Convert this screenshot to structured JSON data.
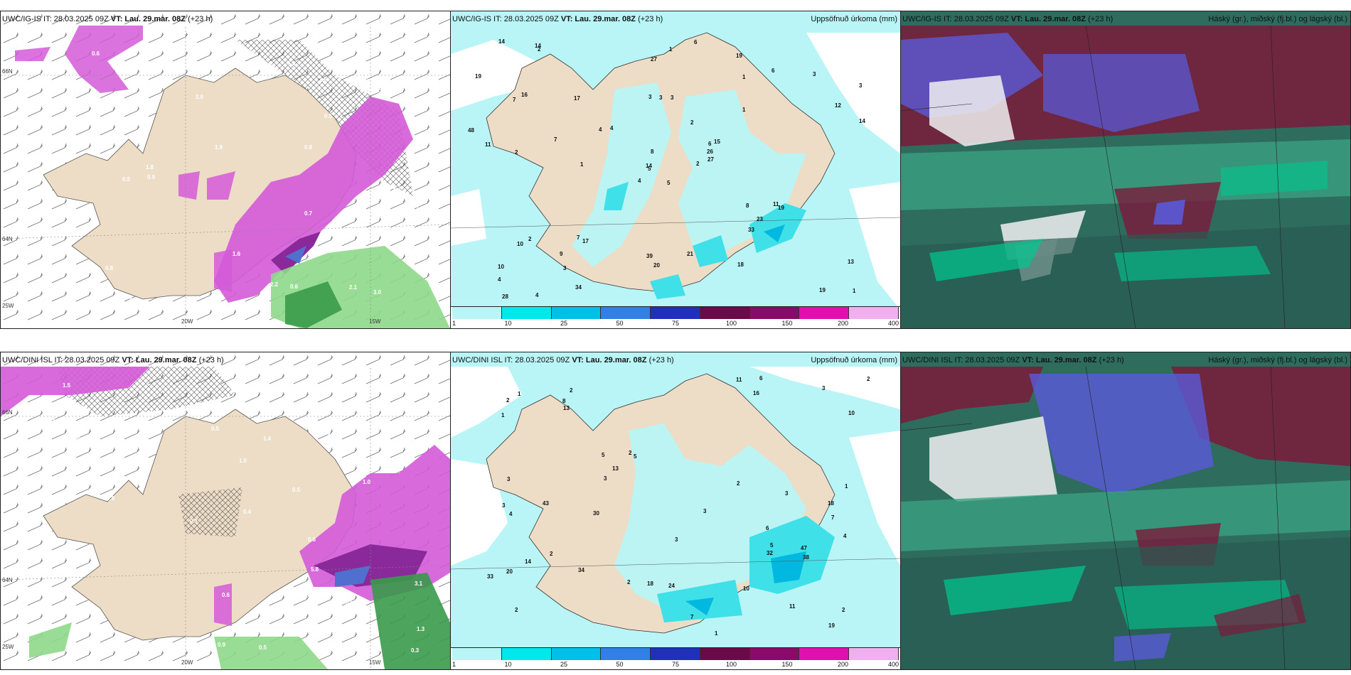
{
  "panels": [
    {
      "id": "p1",
      "header_left": "UWC/IG-IS IT: 28.03.2025 09Z",
      "header_vt": "VT: Lau. 29.mar. 08Z",
      "header_tail": "(+23 h)",
      "header_right": "",
      "lon_labels": [
        "20W",
        "15W"
      ],
      "lat_labels": [
        "66N",
        "64N",
        "25W"
      ]
    },
    {
      "id": "p2",
      "header_left": "UWC/IG-IS IT: 28.03.2025 09Z",
      "header_vt": "VT: Lau. 29.mar. 08Z",
      "header_tail": "(+23 h)",
      "header_right": "Uppsöfnuð úrkoma (mm)",
      "values": [
        "5",
        "7",
        "5",
        "10",
        "6",
        "17",
        "19",
        "3",
        "1",
        "2",
        "2",
        "1",
        "2",
        "3",
        "4",
        "1",
        "4",
        "3",
        "2",
        "2",
        "4",
        "4",
        "3",
        "3",
        "15",
        "19",
        "16",
        "27",
        "11",
        "8",
        "14",
        "14",
        "39",
        "8",
        "17",
        "6",
        "7",
        "19",
        "13",
        "11",
        "6",
        "4",
        "7",
        "33",
        "34",
        "48",
        "26",
        "28",
        "20",
        "27",
        "10",
        "12",
        "19",
        "23",
        "18",
        "9",
        "14",
        "14",
        "21",
        "3",
        "1",
        "1"
      ],
      "legend_ticks": [
        "1",
        "10",
        "25",
        "50",
        "75",
        "100",
        "150",
        "200",
        "400"
      ]
    },
    {
      "id": "p3",
      "header_left": "UWC/IG-IS IT: 28.03.2025 09Z",
      "header_vt": "VT: Lau. 29.mar. 08Z",
      "header_tail": "(+23 h)",
      "header_right": "Háský (gr.), miðský (fj.bl.) og lágský (bl.)"
    },
    {
      "id": "p4",
      "header_left": "UWC/DINI ISL IT: 28.03.2025 09Z",
      "header_vt": "VT: Lau. 29.mar. 08Z",
      "header_tail": "(+23 h)",
      "header_right": "",
      "lon_labels": [
        "20W",
        "15W"
      ],
      "lat_labels": [
        "66N",
        "64N",
        "25W"
      ]
    },
    {
      "id": "p5",
      "header_left": "UWC/DINI ISL IT: 28.03.2025 09Z",
      "header_vt": "VT: Lau. 29.mar. 08Z",
      "header_tail": "(+23 h)",
      "header_right": "Uppsöfnuð úrkoma (mm)",
      "values": [
        "6",
        "7",
        "2",
        "2",
        "5",
        "11",
        "20",
        "16",
        "5",
        "1",
        "1",
        "3",
        "2",
        "2",
        "2",
        "1",
        "3",
        "3",
        "2",
        "2",
        "2",
        "3",
        "3",
        "4",
        "11",
        "8",
        "5",
        "4",
        "13",
        "3",
        "7",
        "10",
        "13",
        "30",
        "18",
        "38",
        "32",
        "43",
        "24",
        "14",
        "10",
        "6",
        "19",
        "18",
        "47",
        "34",
        "33",
        "1",
        "2",
        "3"
      ],
      "legend_ticks": [
        "1",
        "10",
        "25",
        "50",
        "75",
        "100",
        "150",
        "200",
        "400"
      ]
    },
    {
      "id": "p6",
      "header_left": "UWC/DINI ISL IT: 28.03.2025 09Z",
      "header_vt": "VT: Lau. 29.mar. 08Z",
      "header_tail": "(+23 h)",
      "header_right": "Háský (gr.), miðský (fj.bl.) og lágský (bl.)"
    }
  ],
  "p1_snow_values": [
    "0.5",
    "0.8",
    "0.8",
    "1.5",
    "0.8",
    "0.6",
    "0.7",
    "0.9",
    "0.5",
    "0.4",
    "1.3",
    "1.2",
    "0.5",
    "0.8",
    "0.6",
    "1.0",
    "1.8",
    "2.0",
    "3.0",
    "2.2",
    "2.1",
    "3.3",
    "1.8",
    "1.6",
    "2.6",
    "9.1",
    "0.8",
    "0.9",
    "0.6",
    "0.5",
    "0.6",
    "0.6",
    "2.7",
    "0.6",
    "0.4",
    "0.6"
  ],
  "p4_snow_values": [
    "1.0",
    "1.6",
    "0.5",
    "0.8",
    "0.9",
    "0.5",
    "0.5",
    "0.4",
    "0.9",
    "1.1",
    "0.7",
    "1.4",
    "0.6",
    "2.3",
    "1.3",
    "2.9",
    "3.1",
    "3.2",
    "12.5",
    "5.8",
    "2.0",
    "0.6",
    "0.5",
    "0.7",
    "1.0",
    "5.3",
    "1.5",
    "0.3",
    "0.4",
    "0.3"
  ],
  "colors": {
    "land": "#eddcc6",
    "sea": "#ffffff",
    "precip_light": "#b9f4f6",
    "precip_mid": "#40e0e8",
    "precip_heavy": "#00b8e0",
    "snow_purple": "#d45ad8",
    "snow_dark": "#8a2a9a",
    "rain_green": "#8ed88a",
    "cloud_high": "#2e8c6e",
    "cloud_mid": "#5a5ad8",
    "cloud_low": "#7a1a3a"
  },
  "legend_colors": [
    "#b9f4f6",
    "#00e8ec",
    "#00c0ea",
    "#3080e8",
    "#2030b8",
    "#6a0a48",
    "#8a0a6a",
    "#e010b0",
    "#f0b0f0"
  ]
}
